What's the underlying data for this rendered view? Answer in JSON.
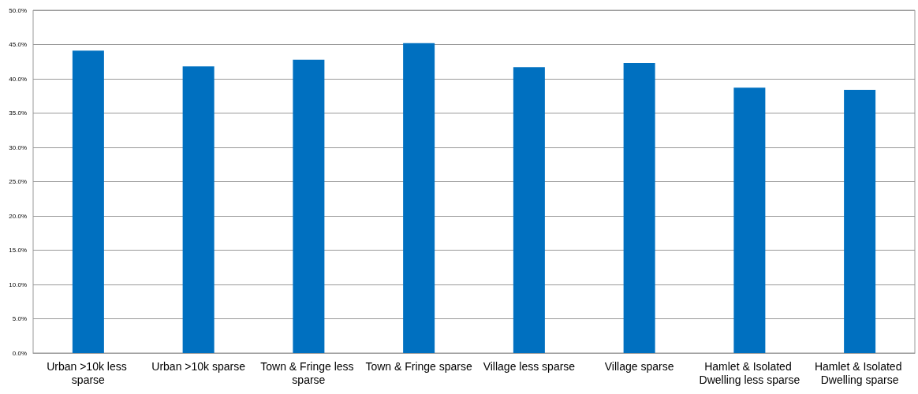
{
  "chart_data": {
    "type": "bar",
    "categories": [
      "Urban >10k less sparse",
      "Urban >10k sparse",
      "Town & Fringe less sparse",
      "Town & Fringe sparse",
      "Village less sparse",
      "Village sparse",
      "Hamlet & Isolated Dwelling less sparse",
      "Hamlet & Isolated Dwelling sparse"
    ],
    "values": [
      44.1,
      41.8,
      42.8,
      45.2,
      41.7,
      42.3,
      38.7,
      38.4
    ],
    "color": "#0070c0",
    "ylim": [
      0,
      50
    ],
    "yticks": [
      {
        "value": 0,
        "label": "0.0%"
      },
      {
        "value": 5,
        "label": "5.0%"
      },
      {
        "value": 10,
        "label": "10.0%"
      },
      {
        "value": 15,
        "label": "15.0%"
      },
      {
        "value": 20,
        "label": "20.0%"
      },
      {
        "value": 25,
        "label": "25.0%"
      },
      {
        "value": 30,
        "label": "30.0%"
      },
      {
        "value": 35,
        "label": "35.0%"
      },
      {
        "value": 40,
        "label": "40.0%"
      },
      {
        "value": 45,
        "label": "45.0%"
      },
      {
        "value": 50,
        "label": "50.0%"
      }
    ],
    "grid": "y"
  }
}
